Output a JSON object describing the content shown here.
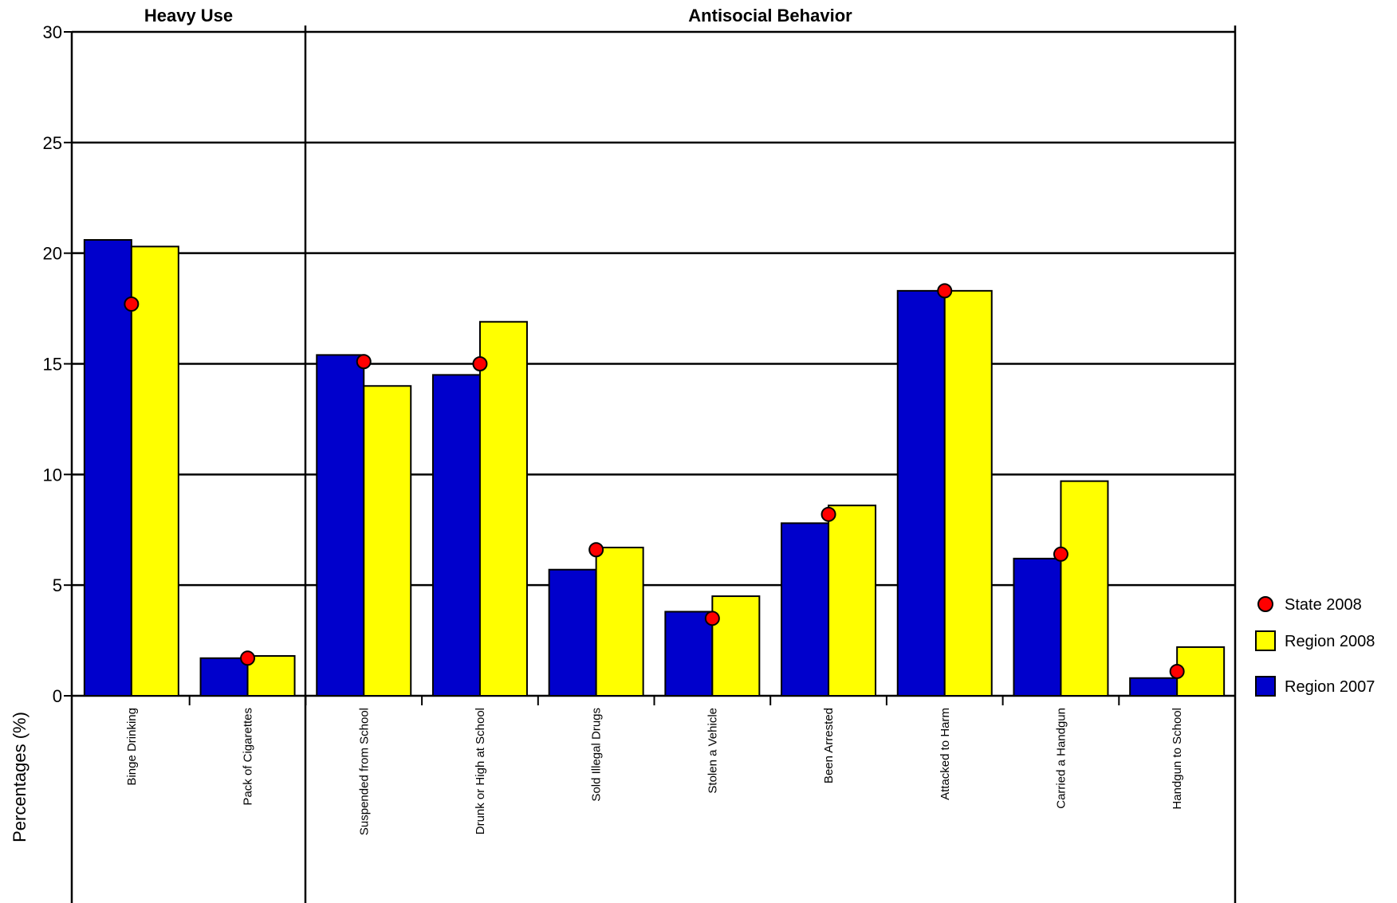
{
  "chart_data": {
    "type": "bar",
    "ylabel": "Percentages (%)",
    "ylim": [
      0,
      30
    ],
    "yticks": [
      0,
      5,
      10,
      15,
      20,
      25,
      30
    ],
    "grid": true,
    "legend_position": "right",
    "groups": [
      {
        "label": "Heavy Use",
        "categories": [
          "Binge Drinking",
          "Pack of Cigarettes"
        ]
      },
      {
        "label": "Antisocial Behavior",
        "categories": [
          "Suspended from School",
          "Drunk or High at School",
          "Sold Illegal Drugs",
          "Stolen a Vehicle",
          "Been Arrested",
          "Attacked to Harm",
          "Carried a Handgun",
          "Handgun to School"
        ]
      }
    ],
    "categories": [
      "Binge Drinking",
      "Pack of Cigarettes",
      "Suspended from School",
      "Drunk or High at School",
      "Sold Illegal Drugs",
      "Stolen a Vehicle",
      "Been Arrested",
      "Attacked to Harm",
      "Carried a Handgun",
      "Handgun to School"
    ],
    "series": [
      {
        "name": "Region 2007",
        "kind": "bar",
        "color": "#0000cc",
        "values": [
          20.6,
          1.7,
          15.4,
          14.5,
          5.7,
          3.8,
          7.8,
          18.3,
          6.2,
          0.8
        ]
      },
      {
        "name": "Region 2008",
        "kind": "bar",
        "color": "#ffff00",
        "values": [
          20.3,
          1.8,
          14.0,
          16.9,
          6.7,
          4.5,
          8.6,
          18.3,
          9.7,
          2.2
        ]
      },
      {
        "name": "State 2008",
        "kind": "point",
        "color": "#ff0000",
        "values": [
          17.7,
          1.7,
          15.1,
          15.0,
          6.6,
          3.5,
          8.2,
          18.3,
          6.4,
          1.1
        ]
      }
    ],
    "legend_order": [
      "State 2008",
      "Region 2008",
      "Region 2007"
    ]
  }
}
